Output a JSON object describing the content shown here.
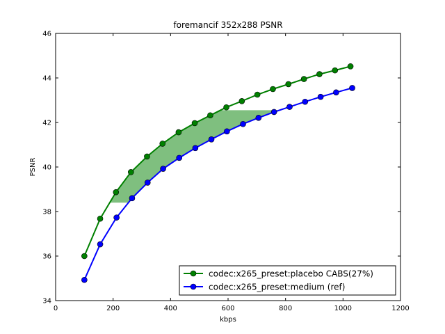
{
  "chart_data": {
    "type": "line",
    "title": "foremancif 352x288 PSNR",
    "xlabel": "kbps",
    "ylabel": "PSNR",
    "xlim": [
      0,
      1200
    ],
    "ylim": [
      34,
      46
    ],
    "xticks": [
      0,
      200,
      400,
      600,
      800,
      1000,
      1200
    ],
    "yticks": [
      34,
      36,
      38,
      40,
      42,
      44,
      46
    ],
    "grid": false,
    "legend_position": "lower-right",
    "series": [
      {
        "name": "codec:x265_preset:placebo CABS(27%)",
        "color": "#008000",
        "x": [
          100,
          155,
          210,
          262,
          318,
          372,
          428,
          484,
          538,
          594,
          648,
          702,
          756,
          810,
          864,
          918,
          972,
          1026
        ],
        "y": [
          36.0,
          37.68,
          38.87,
          39.77,
          40.47,
          41.05,
          41.56,
          41.97,
          42.32,
          42.68,
          42.96,
          43.25,
          43.5,
          43.72,
          43.95,
          44.17,
          44.34,
          44.52
        ]
      },
      {
        "name": "codec:x265_preset:medium (ref)",
        "color": "#0000ff",
        "x": [
          100,
          155,
          212,
          266,
          320,
          374,
          430,
          486,
          542,
          596,
          652,
          706,
          760,
          814,
          868,
          922,
          976,
          1032
        ],
        "y": [
          34.93,
          36.53,
          37.73,
          38.6,
          39.3,
          39.92,
          40.41,
          40.85,
          41.24,
          41.6,
          41.93,
          42.21,
          42.47,
          42.7,
          42.93,
          43.15,
          43.35,
          43.55
        ]
      }
    ],
    "shaded_region": {
      "color": "#008000",
      "ylim": [
        38.4,
        42.55
      ],
      "between": [
        "codec:x265_preset:placebo CABS(27%)",
        "codec:x265_preset:medium (ref)"
      ]
    }
  }
}
